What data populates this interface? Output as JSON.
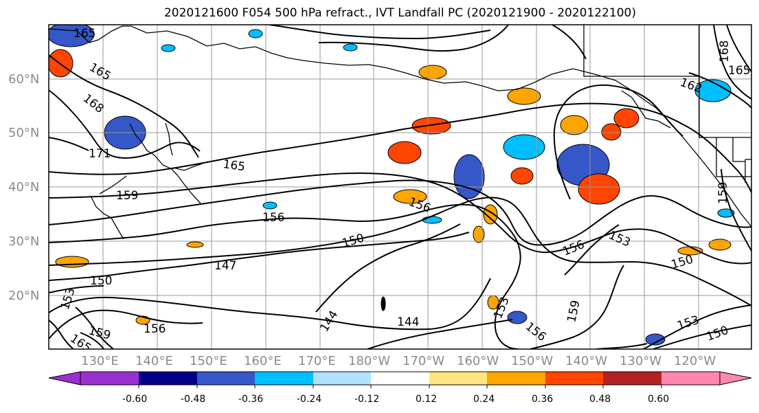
{
  "title": "2020121600 F054 500 hPa refract., IVT Landfall PC (2020121900 - 2020122100)",
  "map": {
    "lon_labels": [
      "130°E",
      "140°E",
      "150°E",
      "160°E",
      "170°E",
      "180°W",
      "170°W",
      "160°W",
      "150°W",
      "140°W",
      "130°W",
      "120°W"
    ],
    "lat_labels": [
      "60°N",
      "50°N",
      "40°N",
      "30°N",
      "20°N"
    ],
    "contour_labels": [
      "165",
      "165",
      "168",
      "171",
      "165",
      "159",
      "156",
      "156",
      "150",
      "147",
      "150",
      "153",
      "159",
      "165",
      "156",
      "144",
      "144",
      "153",
      "156",
      "159",
      "156",
      "153",
      "150",
      "153",
      "150",
      "162",
      "165",
      "168",
      "159"
    ],
    "line_color": "#000000",
    "grid_color": "#9a9a9a",
    "coast_color": "#000000"
  },
  "colorbar": {
    "ticks": [
      "-0.60",
      "-0.48",
      "-0.36",
      "-0.24",
      "-0.12",
      "0.12",
      "0.24",
      "0.36",
      "0.48",
      "0.60"
    ],
    "colors": [
      "#9b30d0",
      "#000088",
      "#3557c8",
      "#00bfff",
      "#b0e2ff",
      "#ffffff",
      "#ffe680",
      "#ffa500",
      "#ff4500",
      "#b22222",
      "#ff88b0"
    ]
  }
}
